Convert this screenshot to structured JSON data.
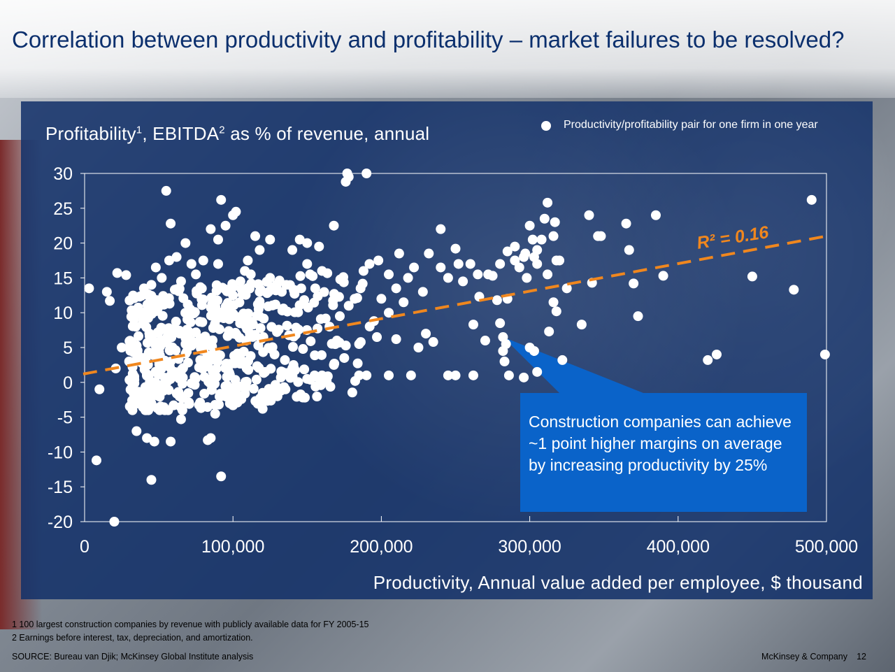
{
  "slide": {
    "title": "Correlation between productivity and profitability – market failures to be resolved?",
    "footnotes": [
      "1 100 largest construction companies by revenue with publicly available data for FY 2005-15",
      "2 Earnings before interest, tax, depreciation, and amortization."
    ],
    "source": "SOURCE:  Bureau van Djik; McKinsey Global Institute analysis",
    "brand": "McKinsey & Company",
    "page_number": "12"
  },
  "chart_data": {
    "type": "scatter",
    "title": "",
    "ylabel_parts": {
      "a": "Profitability",
      "a_sup": "1",
      "b": ", EBITDA",
      "b_sup": "2",
      "c": " as % of revenue, annual"
    },
    "xlabel": "Productivity, Annual value added per employee, $ thousand",
    "legend": "Productivity/profitability pair for one firm in one year",
    "xlim": [
      0,
      500000
    ],
    "ylim": [
      -20,
      30
    ],
    "x_ticks": [
      "0",
      "100,000",
      "200,000",
      "300,000",
      "400,000",
      "500,000"
    ],
    "y_ticks": [
      "30",
      "25",
      "20",
      "15",
      "10",
      "5",
      "0",
      "-5",
      "-10",
      "-15",
      "-20"
    ],
    "trendline": {
      "x": [
        0,
        500000
      ],
      "y": [
        1.2,
        21
      ],
      "label": "R² = 0.16",
      "color": "#f0871e"
    },
    "annotation": "Construction companies can achieve ~1 point higher margins on average by increasing productivity by 25%",
    "grid": false,
    "colors": {
      "points": "#ffffff",
      "panel": "#133269",
      "callout": "#0a63c9",
      "trend": "#f0871e"
    },
    "series": [
      {
        "points": [
          [
            3000,
            13.5
          ],
          [
            15000,
            13
          ],
          [
            17000,
            11.7
          ],
          [
            10000,
            -1
          ],
          [
            8000,
            -11.2
          ],
          [
            20000,
            -20
          ],
          [
            21000,
            2
          ],
          [
            25000,
            5
          ],
          [
            22000,
            15.7
          ],
          [
            28000,
            15.4
          ],
          [
            55000,
            27.5
          ],
          [
            58000,
            22.8
          ],
          [
            68000,
            20
          ],
          [
            85000,
            22
          ],
          [
            92000,
            26.2
          ],
          [
            90000,
            20.5
          ],
          [
            95000,
            22.5
          ],
          [
            100000,
            24
          ],
          [
            102000,
            24.5
          ],
          [
            115000,
            21
          ],
          [
            108000,
            16
          ],
          [
            118000,
            19
          ],
          [
            125000,
            20.5
          ],
          [
            110000,
            17.5
          ],
          [
            140000,
            19
          ],
          [
            145000,
            20.5
          ],
          [
            150000,
            20
          ],
          [
            158000,
            19.5
          ],
          [
            160000,
            16
          ],
          [
            168000,
            22.5
          ],
          [
            176000,
            28.8
          ],
          [
            178000,
            29.5
          ],
          [
            177000,
            30
          ],
          [
            190000,
            30
          ],
          [
            35000,
            -7
          ],
          [
            42000,
            -8
          ],
          [
            47000,
            -8.5
          ],
          [
            58000,
            -8.5
          ],
          [
            85000,
            -8
          ],
          [
            83000,
            -8.3
          ],
          [
            45000,
            -14
          ],
          [
            92000,
            -13.5
          ],
          [
            65000,
            -5.3
          ],
          [
            60000,
            -3.3
          ],
          [
            45000,
            -3
          ],
          [
            88000,
            -4.5
          ],
          [
            120000,
            -1.5
          ],
          [
            130000,
            -2
          ],
          [
            120000,
            -3.8
          ],
          [
            100000,
            -3.3
          ],
          [
            185000,
            1
          ],
          [
            190000,
            1
          ],
          [
            205000,
            1
          ],
          [
            220000,
            1
          ],
          [
            245000,
            1
          ],
          [
            250000,
            1
          ],
          [
            262000,
            1
          ],
          [
            270000,
            6
          ],
          [
            240000,
            22
          ],
          [
            260000,
            17
          ],
          [
            265000,
            15.5
          ],
          [
            272000,
            15.5
          ],
          [
            275000,
            15.3
          ],
          [
            280000,
            17
          ],
          [
            285000,
            18.8
          ],
          [
            290000,
            17.5
          ],
          [
            293000,
            16.5
          ],
          [
            298000,
            15
          ],
          [
            305000,
            17
          ],
          [
            312000,
            15.5
          ],
          [
            300000,
            22.5
          ],
          [
            302000,
            20.5
          ],
          [
            308000,
            20.5
          ],
          [
            317000,
            23
          ],
          [
            316000,
            21
          ],
          [
            318000,
            17.5
          ],
          [
            320000,
            17.5
          ],
          [
            310000,
            23.5
          ],
          [
            305000,
            19
          ],
          [
            297000,
            18.5
          ],
          [
            290000,
            19.5
          ],
          [
            296000,
            18
          ],
          [
            303000,
            18
          ],
          [
            312000,
            25.8
          ],
          [
            280000,
            8.5
          ],
          [
            282000,
            6.5
          ],
          [
            284000,
            5.5
          ],
          [
            282000,
            4.5
          ],
          [
            283000,
            3
          ],
          [
            286000,
            1
          ],
          [
            296000,
            0.7
          ],
          [
            300000,
            5
          ],
          [
            303000,
            4.5
          ],
          [
            305000,
            1.5
          ],
          [
            313000,
            7.3
          ],
          [
            316000,
            11.5
          ],
          [
            318000,
            10.2
          ],
          [
            322000,
            3.2
          ],
          [
            325000,
            13.5
          ],
          [
            335000,
            8.3
          ],
          [
            340000,
            24
          ],
          [
            342000,
            14.3
          ],
          [
            346000,
            21
          ],
          [
            348000,
            21
          ],
          [
            365000,
            22.8
          ],
          [
            367000,
            19
          ],
          [
            370000,
            14.2
          ],
          [
            373000,
            9.5
          ],
          [
            385000,
            24
          ],
          [
            390000,
            15.3
          ],
          [
            420000,
            3.2
          ],
          [
            426000,
            4
          ],
          [
            450000,
            15.2
          ],
          [
            478000,
            13.3
          ],
          [
            490000,
            26.2
          ],
          [
            499000,
            4
          ],
          [
            285000,
            12
          ],
          [
            278000,
            11.8
          ],
          [
            266000,
            12.3
          ],
          [
            262000,
            8.3
          ],
          [
            250000,
            19.2
          ],
          [
            252000,
            17
          ],
          [
            255000,
            14.5
          ],
          [
            245000,
            15
          ],
          [
            240000,
            16.5
          ],
          [
            232000,
            18.5
          ],
          [
            228000,
            13
          ],
          [
            222000,
            16.5
          ],
          [
            218000,
            15
          ],
          [
            212000,
            18.5
          ],
          [
            210000,
            13.5
          ],
          [
            205000,
            15.5
          ],
          [
            200000,
            12
          ],
          [
            198000,
            17.5
          ],
          [
            192000,
            17
          ],
          [
            188000,
            16
          ],
          [
            186000,
            13.5
          ],
          [
            182000,
            12
          ],
          [
            178000,
            11
          ],
          [
            172000,
            9.5
          ],
          [
            165000,
            8
          ],
          [
            170000,
            6
          ],
          [
            175000,
            3.5
          ],
          [
            168000,
            2.5
          ],
          [
            160000,
            1
          ],
          [
            155000,
            1
          ],
          [
            150000,
            0.5
          ],
          [
            140000,
            2
          ],
          [
            135000,
            3.2
          ],
          [
            128000,
            4
          ],
          [
            230000,
            7
          ],
          [
            235000,
            5.8
          ],
          [
            225000,
            5
          ],
          [
            215000,
            11.5
          ],
          [
            205000,
            10
          ],
          [
            195000,
            8.8
          ],
          [
            185000,
            5.5
          ],
          [
            197000,
            6.5
          ],
          [
            210000,
            6.2
          ],
          [
            150000,
            17
          ],
          [
            152000,
            15.5
          ],
          [
            146000,
            13.5
          ],
          [
            136000,
            14
          ],
          [
            125000,
            15
          ],
          [
            118000,
            13
          ],
          [
            112000,
            15.5
          ],
          [
            105000,
            14.5
          ],
          [
            100000,
            12.5
          ],
          [
            90000,
            17
          ],
          [
            80000,
            17.5
          ],
          [
            75000,
            15.5
          ],
          [
            72000,
            17
          ],
          [
            65000,
            14.5
          ],
          [
            62000,
            18
          ],
          [
            57000,
            17.5
          ],
          [
            52000,
            15
          ],
          [
            48000,
            16.5
          ],
          [
            45000,
            14
          ],
          [
            40000,
            13.5
          ],
          [
            37000,
            12.3
          ]
        ]
      }
    ]
  }
}
